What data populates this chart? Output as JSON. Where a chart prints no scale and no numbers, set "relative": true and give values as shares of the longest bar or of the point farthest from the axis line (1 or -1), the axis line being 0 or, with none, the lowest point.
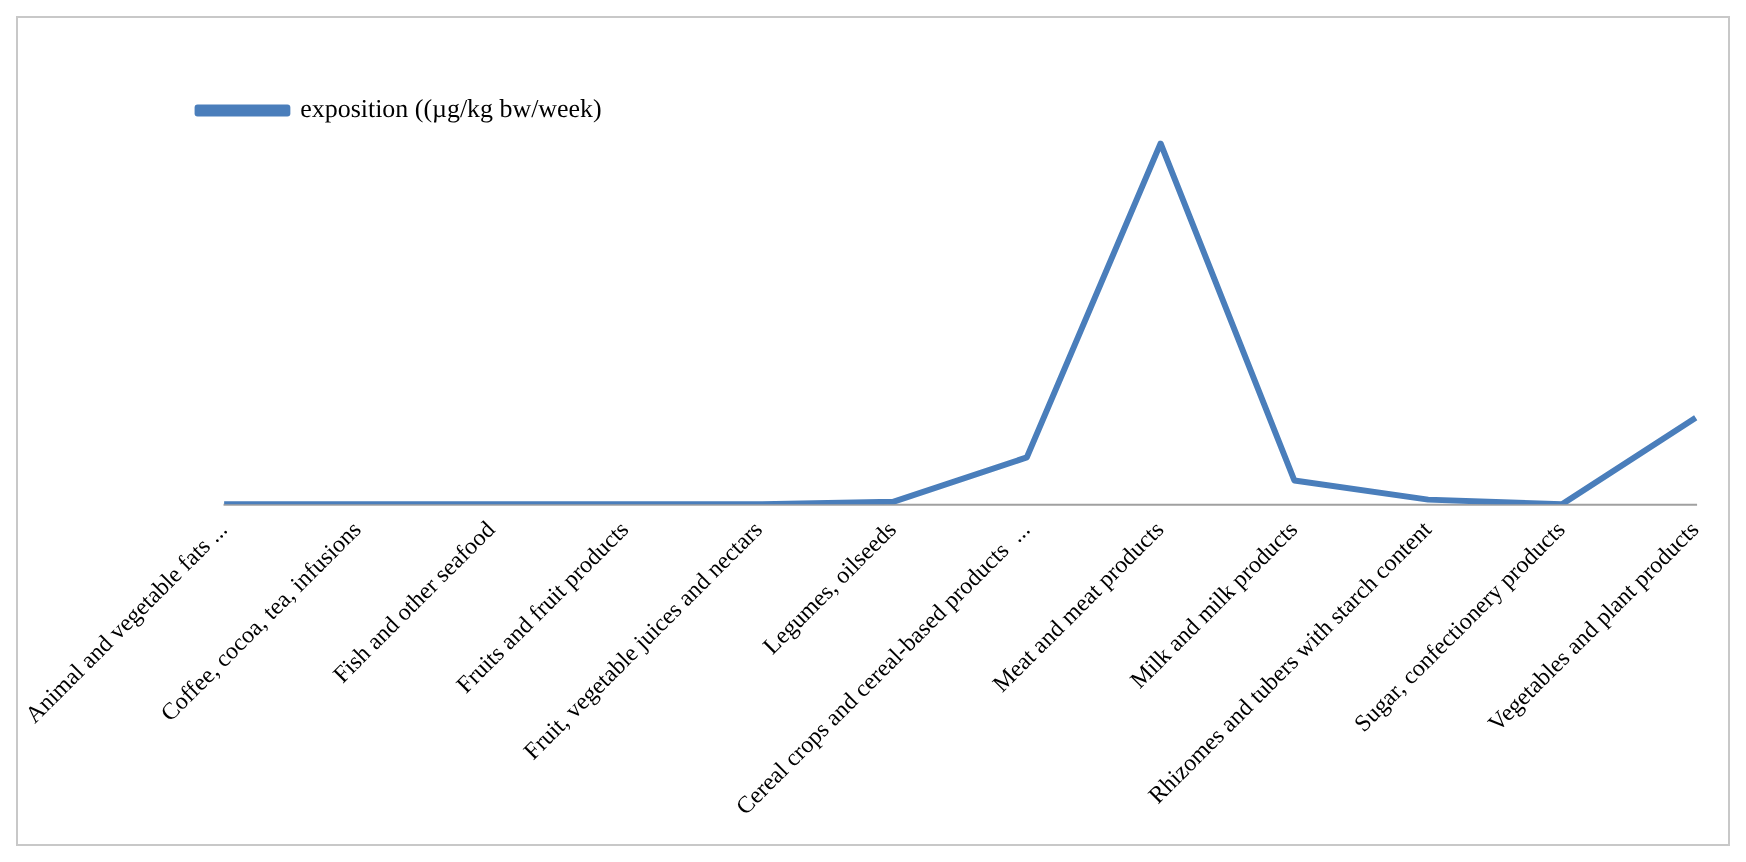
{
  "chart_data": {
    "type": "line",
    "relative": true,
    "categories": [
      "Animal and vegetable fats ...",
      "Coffee, cocoa, tea, infusions",
      "Fish and other seafood",
      "Fruits and fruit products",
      "Fruit, vegetable juices and nectars",
      "Legumes, oilseeds",
      "Cereal crops and cereal-based products  ...",
      "Meat and meat products",
      "Milk and milk products",
      "Rhizomes and tubers with starch content",
      "Sugar, confectionery products",
      "Vegetables and plant products"
    ],
    "series": [
      {
        "name": "exposition ((µg/kg bw/week)",
        "color": "#4a7ebb",
        "values": [
          0,
          0,
          0,
          0,
          0,
          0.007,
          0.13,
          1,
          0.066,
          0.013,
          0,
          0.24
        ]
      }
    ],
    "legend": "top left",
    "marker": "none",
    "line_style": "solid",
    "grid": false
  }
}
